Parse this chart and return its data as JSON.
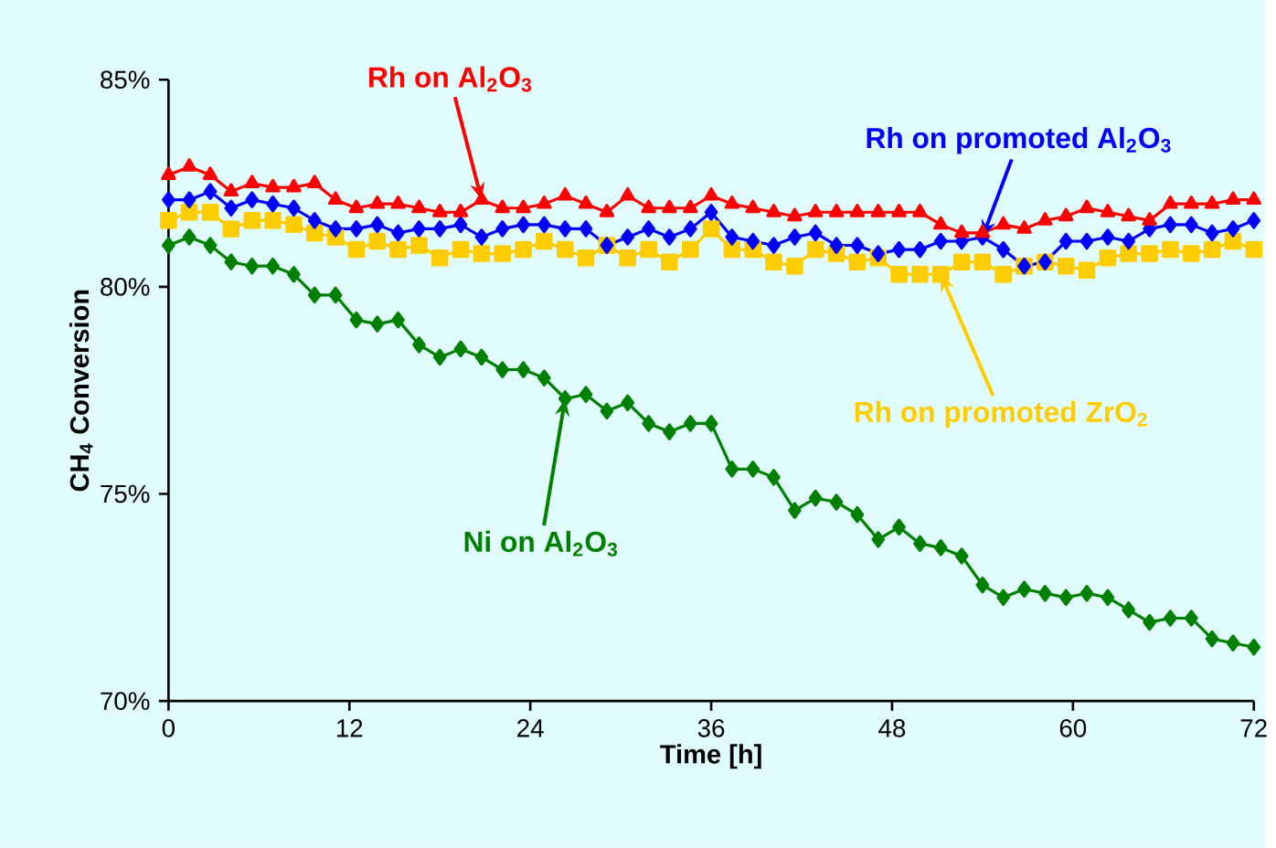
{
  "chart_data": {
    "type": "line",
    "xlabel": "Time [h]",
    "ylabel": "CH$_{4}$ Conversion",
    "x": [
      0,
      1.38,
      2.77,
      4.15,
      5.54,
      6.92,
      8.31,
      9.69,
      11.08,
      12.46,
      13.85,
      15.23,
      16.62,
      18,
      19.38,
      20.77,
      22.15,
      23.54,
      24.92,
      26.31,
      27.69,
      29.08,
      30.46,
      31.85,
      33.23,
      34.62,
      36,
      37.38,
      38.77,
      40.15,
      41.54,
      42.92,
      44.31,
      45.69,
      47.08,
      48.46,
      49.85,
      51.23,
      52.62,
      54,
      55.38,
      56.77,
      58.15,
      59.54,
      60.92,
      62.31,
      63.69,
      65.08,
      66.46,
      67.85,
      69.23,
      70.62,
      72
    ],
    "series": [
      {
        "color": "#ff0000",
        "marker": "triangle",
        "values": [
          82.7,
          82.9,
          82.7,
          82.3,
          82.5,
          82.4,
          82.4,
          82.5,
          82.1,
          81.9,
          82.0,
          82.0,
          81.9,
          81.8,
          81.8,
          82.1,
          81.9,
          81.9,
          82.0,
          82.2,
          82.0,
          81.8,
          82.2,
          81.9,
          81.9,
          81.9,
          82.2,
          82.0,
          81.9,
          81.8,
          81.7,
          81.8,
          81.8,
          81.8,
          81.8,
          81.8,
          81.8,
          81.5,
          81.3,
          81.3,
          81.5,
          81.4,
          81.6,
          81.7,
          81.9,
          81.8,
          81.7,
          81.6,
          82.0,
          82.0,
          82.0,
          82.1,
          82.1
        ]
      },
      {
        "color": "#0000ff",
        "marker": "diamond",
        "values": [
          82.1,
          82.1,
          82.3,
          81.9,
          82.1,
          82.0,
          81.9,
          81.6,
          81.4,
          81.4,
          81.5,
          81.3,
          81.4,
          81.4,
          81.5,
          81.2,
          81.4,
          81.5,
          81.5,
          81.4,
          81.4,
          81.0,
          81.2,
          81.4,
          81.2,
          81.4,
          81.8,
          81.2,
          81.1,
          81.0,
          81.2,
          81.3,
          81.0,
          81.0,
          80.8,
          80.9,
          80.9,
          81.1,
          81.1,
          81.2,
          80.9,
          80.5,
          80.6,
          81.1,
          81.1,
          81.2,
          81.1,
          81.4,
          81.5,
          81.5,
          81.3,
          81.4,
          81.6
        ]
      },
      {
        "color": "#ffcc00",
        "marker": "square",
        "values": [
          81.6,
          81.8,
          81.8,
          81.4,
          81.6,
          81.6,
          81.5,
          81.3,
          81.2,
          80.9,
          81.1,
          80.9,
          81.0,
          80.7,
          80.9,
          80.8,
          80.8,
          80.9,
          81.1,
          80.9,
          80.7,
          81.0,
          80.7,
          80.9,
          80.6,
          80.9,
          81.4,
          80.9,
          80.9,
          80.6,
          80.5,
          80.9,
          80.8,
          80.6,
          80.7,
          80.3,
          80.3,
          80.3,
          80.6,
          80.6,
          80.3,
          80.5,
          80.6,
          80.5,
          80.4,
          80.7,
          80.8,
          80.8,
          80.9,
          80.8,
          80.9,
          81.1,
          80.9
        ]
      },
      {
        "color": "#008000",
        "marker": "diamond",
        "values": [
          81.0,
          81.2,
          81.0,
          80.6,
          80.5,
          80.5,
          80.3,
          79.8,
          79.8,
          79.2,
          79.1,
          79.2,
          78.6,
          78.3,
          78.5,
          78.3,
          78.0,
          78.0,
          77.8,
          77.3,
          77.4,
          77.0,
          77.2,
          76.7,
          76.5,
          76.7,
          76.7,
          75.6,
          75.6,
          75.4,
          74.6,
          74.9,
          74.8,
          74.5,
          73.9,
          74.2,
          73.8,
          73.7,
          73.5,
          72.8,
          72.5,
          72.7,
          72.6,
          72.5,
          72.6,
          72.5,
          72.2,
          71.9,
          72.0,
          72.0,
          71.5,
          71.4,
          71.3
        ]
      }
    ],
    "xlim": [
      0,
      72
    ],
    "xticks": [
      0,
      12,
      24,
      36,
      48,
      60,
      72
    ],
    "ylim": [
      70,
      85
    ],
    "yticks": [
      {
        "value": 70,
        "label": "70%"
      },
      {
        "value": 75,
        "label": "75%"
      },
      {
        "value": 80,
        "label": "80%"
      },
      {
        "value": 85,
        "label": "85%"
      }
    ],
    "grid": false,
    "line_style": "solid",
    "annotations": [
      {
        "text": "Rh on Al$_{2}$O$_{3}$",
        "x": 20.77,
        "y": 82.1
      },
      {
        "text": "Rh on promoted Al$_{2}$O$_{3}$",
        "x": 54,
        "y": 81.2
      },
      {
        "text": "Rh on promoted ZrO$_{2}$",
        "x": 51.23,
        "y": 80.3
      },
      {
        "text": "Ni on Al$_{2}$O$_{3}$",
        "x": 26.31,
        "y": 77.3
      }
    ]
  }
}
